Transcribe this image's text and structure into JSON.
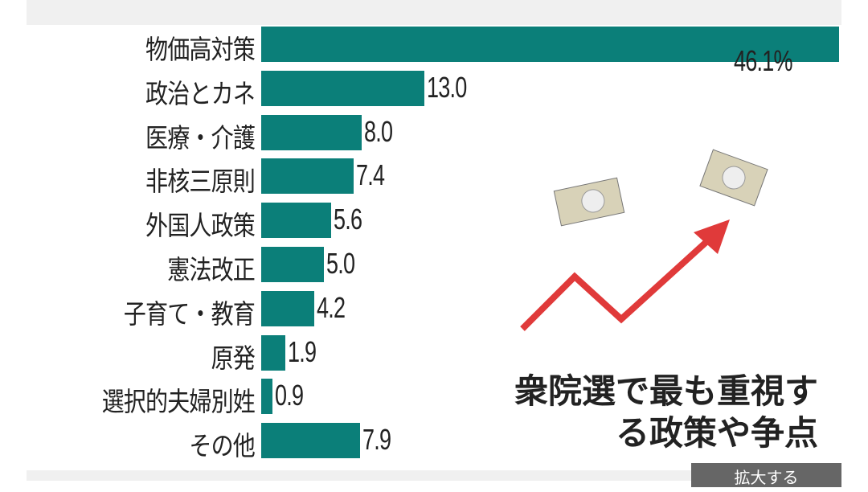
{
  "chart_data": {
    "type": "bar",
    "orientation": "horizontal",
    "title": "衆院選で最も重視する政策や争点",
    "unit": "%",
    "categories": [
      "物価高対策",
      "政治とカネ",
      "医療・介護",
      "非核三原則",
      "外国人政策",
      "憲法改正",
      "子育て・教育",
      "原発",
      "選択的夫婦別姓",
      "その他"
    ],
    "values": [
      46.1,
      13.0,
      8.0,
      7.4,
      5.6,
      5.0,
      4.2,
      1.9,
      0.9,
      7.9
    ],
    "value_labels": [
      "46.1%",
      "13.0",
      "8.0",
      "7.4",
      "5.6",
      "5.0",
      "4.2",
      "1.9",
      "0.9",
      "7.9"
    ],
    "bar_color": "#0b7f79",
    "arrow_color": "#e03a3a"
  },
  "button": {
    "label": "拡大する"
  }
}
